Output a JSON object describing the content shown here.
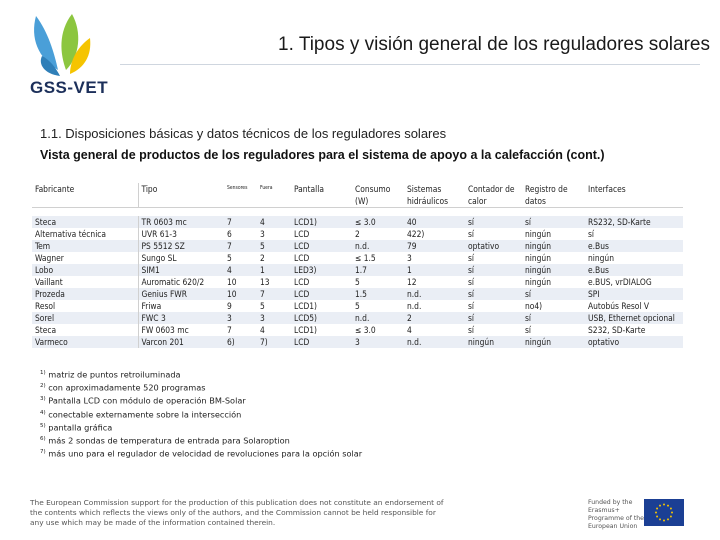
{
  "brand": {
    "name": "GSS-VET"
  },
  "page": {
    "title": "1. Tipos y visión general de los reguladores solares",
    "subtitle": "1.1. Disposiciones básicas y datos técnicos de los reguladores solares",
    "heading": "Vista general de productos de los reguladores para el sistema de apoyo a la calefacción (cont.)"
  },
  "table": {
    "headers": [
      "Fabricante",
      "Tipo",
      "Sensores",
      "Fuera",
      "Pantalla",
      "Consumo (W)",
      "Sistemas hidráulicos",
      "Contador de calor",
      "Registro de datos",
      "Interfaces"
    ],
    "rows": [
      [
        "Steca",
        "TR 0603 mc",
        "7",
        "4",
        "LCD1)",
        "≤ 3.0",
        "40",
        "sí",
        "sí",
        "RS232, SD-Karte"
      ],
      [
        "Alternativa técnica",
        "UVR 61-3",
        "6",
        "3",
        "LCD",
        "2",
        "422)",
        "sí",
        "ningún",
        "sí"
      ],
      [
        "Tem",
        "PS 5512 SZ",
        "7",
        "5",
        "LCD",
        "n.d.",
        "79",
        "optativo",
        "ningún",
        "e.Bus"
      ],
      [
        "Wagner",
        "Sungo SL",
        "5",
        "2",
        "LCD",
        "≤ 1.5",
        "3",
        "sí",
        "ningún",
        "ningún"
      ],
      [
        "Lobo",
        "SIM1",
        "4",
        "1",
        "LED3)",
        "1.7",
        "1",
        "sí",
        "ningún",
        "e.Bus"
      ],
      [
        "Vaillant",
        "Auromatic 620/2",
        "10",
        "13",
        "LCD",
        "5",
        "12",
        "sí",
        "ningún",
        "e.BUS, vrDIALOG"
      ],
      [
        "Prozeda",
        "Genius FWR",
        "10",
        "7",
        "LCD",
        "1.5",
        "n.d.",
        "sí",
        "sí",
        "SPI"
      ],
      [
        "Resol",
        "Friwa",
        "9",
        "5",
        "LCD1)",
        "5",
        "n.d.",
        "sí",
        "no4)",
        "Autobús Resol V"
      ],
      [
        "Sorel",
        "FWC 3",
        "3",
        "3",
        "LCD5)",
        "n.d.",
        "2",
        "sí",
        "sí",
        "USB, Ethernet opcional"
      ],
      [
        "Steca",
        "FW 0603 mc",
        "7",
        "4",
        "LCD1)",
        "≤ 3.0",
        "4",
        "sí",
        "sí",
        "S232, SD-Karte"
      ],
      [
        "Varmeco",
        "Varcon 201",
        "6)",
        "7)",
        "LCD",
        "3",
        "n.d.",
        "ningún",
        "ningún",
        "optativo"
      ]
    ]
  },
  "footnotes": [
    {
      "mark": "1)",
      "text": "matriz de puntos retroiluminada"
    },
    {
      "mark": "2)",
      "text": "con aproximadamente 520 programas"
    },
    {
      "mark": "3)",
      "text": "Pantalla LCD con módulo de operación BM-Solar"
    },
    {
      "mark": "4)",
      "text": "conectable externamente sobre la intersección"
    },
    {
      "mark": "5)",
      "text": "pantalla gráfica"
    },
    {
      "mark": "6)",
      "text": "más 2 sondas de temperatura de entrada para Solaroption"
    },
    {
      "mark": "7)",
      "text": "más uno para el regulador de velocidad de revoluciones para la opción solar"
    }
  ],
  "footer": {
    "disclaimer": "The European Commission support for the production of this publication does not constitute an endorsement of the contents which reflects the views only of the authors, and the Commission cannot be held responsible for any use which may be made of the information contained therein.",
    "funded": "Funded by the Erasmus+ Programme of the European Union"
  },
  "colors": {
    "band": "#eaeef5",
    "brand_navy": "#1c2f5a",
    "logo_blue": "#4a9fd8",
    "logo_green": "#8cc63f",
    "logo_yellow": "#f5c400",
    "eu_blue": "#1b3f94"
  },
  "icons": {
    "logo": "gss-vet-leaf-logo",
    "eu": "eu-flag-icon"
  }
}
